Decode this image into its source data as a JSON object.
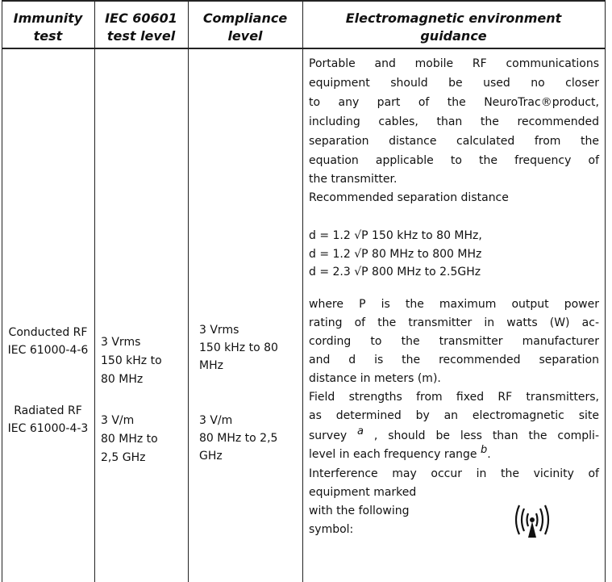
{
  "table": {
    "headers": [
      [
        "Immunity",
        "test"
      ],
      [
        "IEC 60601",
        "test level"
      ],
      [
        "Compliance",
        "level"
      ],
      [
        "Electromagnetic environment",
        "guidance"
      ]
    ],
    "immunity_test": [
      [
        "Conducted RF",
        "IEC 61000-4-6"
      ],
      [
        "Radiated RF",
        "IEC 61000-4-3"
      ]
    ],
    "test_level": [
      [
        "3 Vrms",
        "150 kHz to",
        "80 MHz"
      ],
      [
        "3 V/m",
        "80 MHz to",
        "2,5 GHz"
      ]
    ],
    "compliance_level": [
      [
        "3 Vrms",
        "150 kHz to 80",
        "MHz"
      ],
      [
        "3 V/m",
        "80 MHz to 2,5",
        "GHz"
      ]
    ],
    "guidance": [
      "Portable and mobile RF communications",
      "equipment should be used no closer",
      "to any part of the NeuroTrac®product,",
      "including cables, than the recommended",
      "separation distance calculated from the",
      "equation applicable to the frequency of",
      "the transmitter.",
      "Recommended separation distance",
      "d = 1.2 √P 150 kHz to 80 MHz,",
      "d = 1.2 √P 80 MHz to 800 MHz",
      "d = 2.3 √P 800 MHz to 2.5GHz",
      "where P is the maximum output power",
      "rating of the transmitter in watts (W) ac-",
      "cording to the transmitter manufacturer",
      "and d is the recommended separation",
      "distance in meters (m).",
      "Field strengths from fixed RF transmitters,",
      "as determined by an electromagnetic site",
      {
        "text": "survey ",
        "sup": "a",
        "after": " , should be less than the compli-"
      },
      {
        "text": "level in each frequency range ",
        "sup": "b",
        "after": "."
      },
      "Interference may occur in the vicinity of",
      "equipment marked",
      "with the following",
      "symbol:"
    ]
  }
}
